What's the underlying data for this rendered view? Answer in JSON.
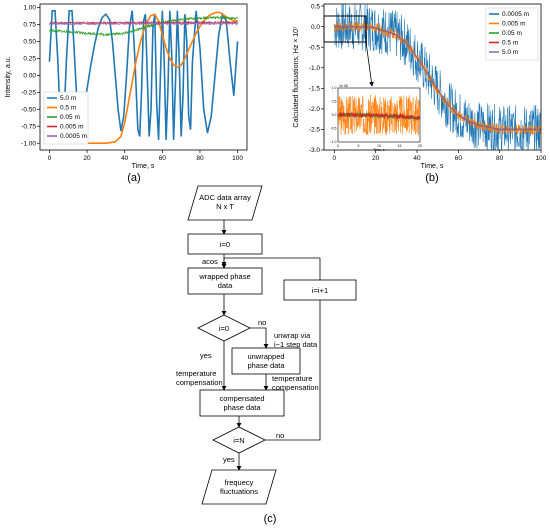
{
  "chart_data": [
    {
      "type": "line",
      "panel_label": "(a)",
      "xlabel": "Time, s",
      "ylabel": "Intensity, a.u.",
      "xlim": [
        -5,
        105
      ],
      "ylim": [
        -1.1,
        1.05
      ],
      "xticks": [
        "0",
        "20",
        "40",
        "60",
        "80",
        "100"
      ],
      "xtick_values": [
        0,
        20,
        40,
        60,
        80,
        100
      ],
      "yticks": [
        "-1.00",
        "-0.75",
        "-0.50",
        "-0.25",
        "0.00",
        "0.25",
        "0.50",
        "0.75",
        "1.00"
      ],
      "ytick_values": [
        -1.0,
        -0.75,
        -0.5,
        -0.25,
        0.0,
        0.25,
        0.5,
        0.75,
        1.0
      ],
      "legend_position": "lower-left",
      "series": [
        {
          "name": "5.0 m",
          "color": "#1f77b4",
          "x": [
            0,
            1.5,
            3,
            4.5,
            6,
            7.5,
            9,
            10.5,
            12,
            13.5,
            15,
            16.5,
            18,
            20,
            22,
            24,
            26,
            28,
            30,
            32,
            33.5,
            35,
            36.5,
            38,
            39.5,
            41,
            42.5,
            44,
            45.5,
            47,
            48,
            49,
            50,
            51,
            52,
            53,
            54,
            55,
            56,
            57,
            58,
            59,
            60,
            61,
            62,
            63,
            64,
            65,
            66,
            67,
            68,
            69,
            70,
            71,
            72,
            73,
            74,
            75,
            76,
            78,
            80,
            82,
            84,
            86,
            88,
            90,
            92,
            94,
            96,
            98,
            100
          ],
          "y": [
            0.2,
            0.95,
            0.95,
            0.2,
            -0.8,
            -0.8,
            0.2,
            0.95,
            0.95,
            0.2,
            -0.6,
            -0.8,
            -0.6,
            -0.2,
            0.15,
            0.45,
            0.7,
            0.85,
            0.9,
            0.82,
            0.5,
            0.0,
            -0.5,
            -0.82,
            -0.6,
            0.0,
            0.7,
            0.95,
            0.2,
            -0.8,
            -0.9,
            -0.2,
            0.8,
            0.9,
            0.0,
            -0.9,
            -0.5,
            0.7,
            0.9,
            -0.4,
            -0.95,
            0.0,
            0.95,
            0.2,
            -0.95,
            -0.2,
            0.95,
            0.3,
            -0.95,
            -0.1,
            0.95,
            0.2,
            -0.9,
            -0.3,
            0.9,
            0.5,
            -0.6,
            -0.8,
            0.2,
            0.95,
            0.4,
            -0.5,
            -0.85,
            -0.6,
            0.0,
            0.6,
            0.9,
            0.8,
            0.2,
            -0.3,
            0.5
          ]
        },
        {
          "name": "0.5 m",
          "color": "#ff7f0e",
          "x": [
            0,
            5,
            10,
            15,
            20,
            25,
            30,
            35,
            38,
            40,
            42,
            44,
            46,
            48,
            50,
            52,
            54,
            56,
            58,
            60,
            62,
            64,
            66,
            68,
            70,
            72,
            74,
            76,
            78,
            80,
            82,
            84,
            86,
            88,
            90,
            92,
            94,
            96,
            98,
            100
          ],
          "y": [
            -0.92,
            -0.97,
            -1.0,
            -1.0,
            -1.0,
            -1.0,
            -1.0,
            -0.98,
            -0.9,
            -0.7,
            -0.4,
            -0.1,
            0.2,
            0.45,
            0.65,
            0.8,
            0.88,
            0.9,
            0.8,
            0.6,
            0.4,
            0.25,
            0.15,
            0.12,
            0.15,
            0.25,
            0.38,
            0.5,
            0.62,
            0.72,
            0.8,
            0.86,
            0.9,
            0.92,
            0.93,
            0.9,
            0.86,
            0.83,
            0.8,
            0.8
          ]
        },
        {
          "name": "0.05 m",
          "color": "#2ca02c",
          "x": [
            0,
            10,
            20,
            30,
            40,
            50,
            60,
            70,
            80,
            90,
            100
          ],
          "y": [
            0.66,
            0.64,
            0.62,
            0.6,
            0.62,
            0.7,
            0.78,
            0.82,
            0.84,
            0.85,
            0.84
          ]
        },
        {
          "name": "0.005 m",
          "color": "#d62728",
          "x": [
            0,
            100
          ],
          "y": [
            0.77,
            0.78
          ]
        },
        {
          "name": "0.0005 m",
          "color": "#9467bd",
          "x": [
            0,
            100
          ],
          "y": [
            0.76,
            0.76
          ]
        }
      ]
    },
    {
      "type": "line",
      "panel_label": "(b)",
      "xlabel": "Time, s",
      "ylabel": "Calculated fluctuations, Hz × 10⁷",
      "xlim": [
        -5,
        100
      ],
      "ylim": [
        -3.0,
        0.55
      ],
      "xticks": [
        "0",
        "20",
        "40",
        "60",
        "80",
        "100"
      ],
      "xtick_values": [
        0,
        20,
        40,
        60,
        80,
        100
      ],
      "yticks": [
        "-3.0",
        "-2.5",
        "-2.0",
        "-1.5",
        "-1.0",
        "-0.5",
        "0.0",
        "0.5"
      ],
      "ytick_values": [
        -3.0,
        -2.5,
        -2.0,
        -1.5,
        -1.0,
        -0.5,
        0.0,
        0.5
      ],
      "legend_position": "top-right",
      "series": [
        {
          "name": "0.0005 m",
          "color": "#1f77b4",
          "x": [
            0,
            10,
            20,
            30,
            35,
            40,
            45,
            50,
            55,
            60,
            65,
            70,
            75,
            80,
            90,
            100
          ],
          "y": [
            0.0,
            0.0,
            -0.03,
            -0.2,
            -0.4,
            -0.75,
            -1.15,
            -1.55,
            -1.9,
            -2.15,
            -2.3,
            -2.4,
            -2.45,
            -2.5,
            -2.5,
            -2.5
          ]
        },
        {
          "name": "0.005 m",
          "color": "#ff7f0e",
          "x": [
            0,
            10,
            20,
            30,
            35,
            40,
            45,
            50,
            55,
            60,
            65,
            70,
            75,
            80,
            90,
            100
          ],
          "y": [
            0.0,
            0.0,
            -0.03,
            -0.2,
            -0.4,
            -0.75,
            -1.15,
            -1.55,
            -1.9,
            -2.15,
            -2.3,
            -2.4,
            -2.45,
            -2.5,
            -2.5,
            -2.5
          ]
        },
        {
          "name": "0.05 m",
          "color": "#2ca02c",
          "x": [
            0,
            10,
            20,
            30,
            35,
            40,
            45,
            50,
            55,
            60,
            65,
            70,
            75,
            80,
            90,
            100
          ],
          "y": [
            0.0,
            0.0,
            -0.03,
            -0.2,
            -0.4,
            -0.75,
            -1.15,
            -1.55,
            -1.9,
            -2.15,
            -2.3,
            -2.4,
            -2.45,
            -2.5,
            -2.5,
            -2.5
          ]
        },
        {
          "name": "0.5 m",
          "color": "#d62728",
          "x": [
            0,
            10,
            20,
            30,
            35,
            40,
            45,
            50,
            55,
            60,
            65,
            70,
            75,
            80,
            90,
            100
          ],
          "y": [
            0.0,
            0.0,
            -0.03,
            -0.2,
            -0.4,
            -0.75,
            -1.15,
            -1.55,
            -1.9,
            -2.15,
            -2.3,
            -2.4,
            -2.45,
            -2.5,
            -2.5,
            -2.5
          ]
        },
        {
          "name": "5.0 m",
          "color": "#9467bd",
          "x": [
            0,
            10,
            20,
            30,
            35,
            40,
            45,
            50,
            55,
            60,
            65,
            70,
            75,
            80,
            90,
            100
          ],
          "y": [
            0.0,
            0.0,
            -0.03,
            -0.2,
            -0.4,
            -0.75,
            -1.15,
            -1.55,
            -1.9,
            -2.15,
            -2.3,
            -2.4,
            -2.45,
            -2.5,
            -2.5,
            -2.5
          ]
        }
      ],
      "inset": {
        "xlim": [
          0,
          20
        ],
        "ylim": [
          -1.0,
          1.0
        ],
        "xticks": [
          "0",
          "5",
          "10",
          "15",
          "20"
        ],
        "xtick_values": [
          0,
          5,
          10,
          15,
          20
        ],
        "yticks": [
          "1.0",
          "0.5",
          "0.0",
          "-0.5",
          "-1.0"
        ],
        "ytick_values": [
          1.0,
          0.5,
          0.0,
          -0.5,
          -1.0
        ],
        "xlabel": "Time, s",
        "offset_label": "1e 06",
        "series": [
          {
            "name": "0.005 m",
            "color": "#ff7f0e",
            "x": [
              0,
              20
            ],
            "y": [
              0.0,
              0.0
            ]
          },
          {
            "name": "0.05 m",
            "color": "#2ca02c",
            "x": [
              0,
              5,
              10,
              15,
              20
            ],
            "y": [
              0.0,
              0.0,
              -0.03,
              -0.06,
              -0.12
            ]
          },
          {
            "name": "0.5 m",
            "color": "#d62728",
            "x": [
              0,
              5,
              10,
              15,
              20
            ],
            "y": [
              0.02,
              0.0,
              -0.02,
              -0.05,
              -0.1
            ]
          }
        ]
      }
    }
  ],
  "flowchart": {
    "panel_label": "(c)",
    "nodes": {
      "adc": [
        "ADC data array",
        "N x T"
      ],
      "init": [
        "i=0"
      ],
      "wrapped": [
        "wrapped phase",
        "data"
      ],
      "dec1": [
        "i=0"
      ],
      "unwrapped": [
        "unwrapped",
        "phase data"
      ],
      "compensated": [
        "compensated",
        "phase data"
      ],
      "dec2": [
        "i=N"
      ],
      "incr": [
        "i=i+1"
      ],
      "freq": [
        "frequecy",
        "fluctuations"
      ]
    },
    "edges": {
      "acos": [
        "acos"
      ],
      "no1": [
        "no"
      ],
      "unwrap_via": [
        "unwrap via",
        "i−1 step data"
      ],
      "yes1": [
        "yes"
      ],
      "temp1": [
        "temperature",
        "compensation"
      ],
      "temp2": [
        "temperature",
        "compensation"
      ],
      "no2": [
        "no"
      ],
      "yes2": [
        "yes"
      ]
    }
  }
}
